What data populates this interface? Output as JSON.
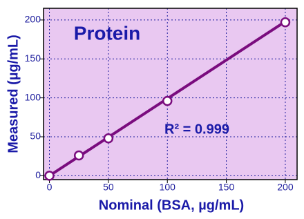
{
  "chart_data": {
    "type": "scatter",
    "title": "Protein",
    "annotation": "R² = 0.999",
    "x_label": "Nominal (BSA, µg/mL)",
    "y_label": "Measured (µg/mL)",
    "series": [
      {
        "name": "Protein",
        "color": "#7a0c7e",
        "x": [
          0,
          25,
          50,
          100,
          200
        ],
        "values": [
          0,
          26,
          48,
          96,
          197
        ]
      }
    ],
    "fit_line": {
      "x": [
        0,
        200
      ],
      "y": [
        0,
        198
      ]
    },
    "xlim": [
      -5,
      210
    ],
    "xticks": [
      0,
      50,
      100,
      150,
      200
    ],
    "ylim": [
      -5,
      215
    ],
    "yticks": [
      0,
      50,
      100,
      150,
      200
    ],
    "grid": true,
    "background": "#e9c8f1"
  }
}
